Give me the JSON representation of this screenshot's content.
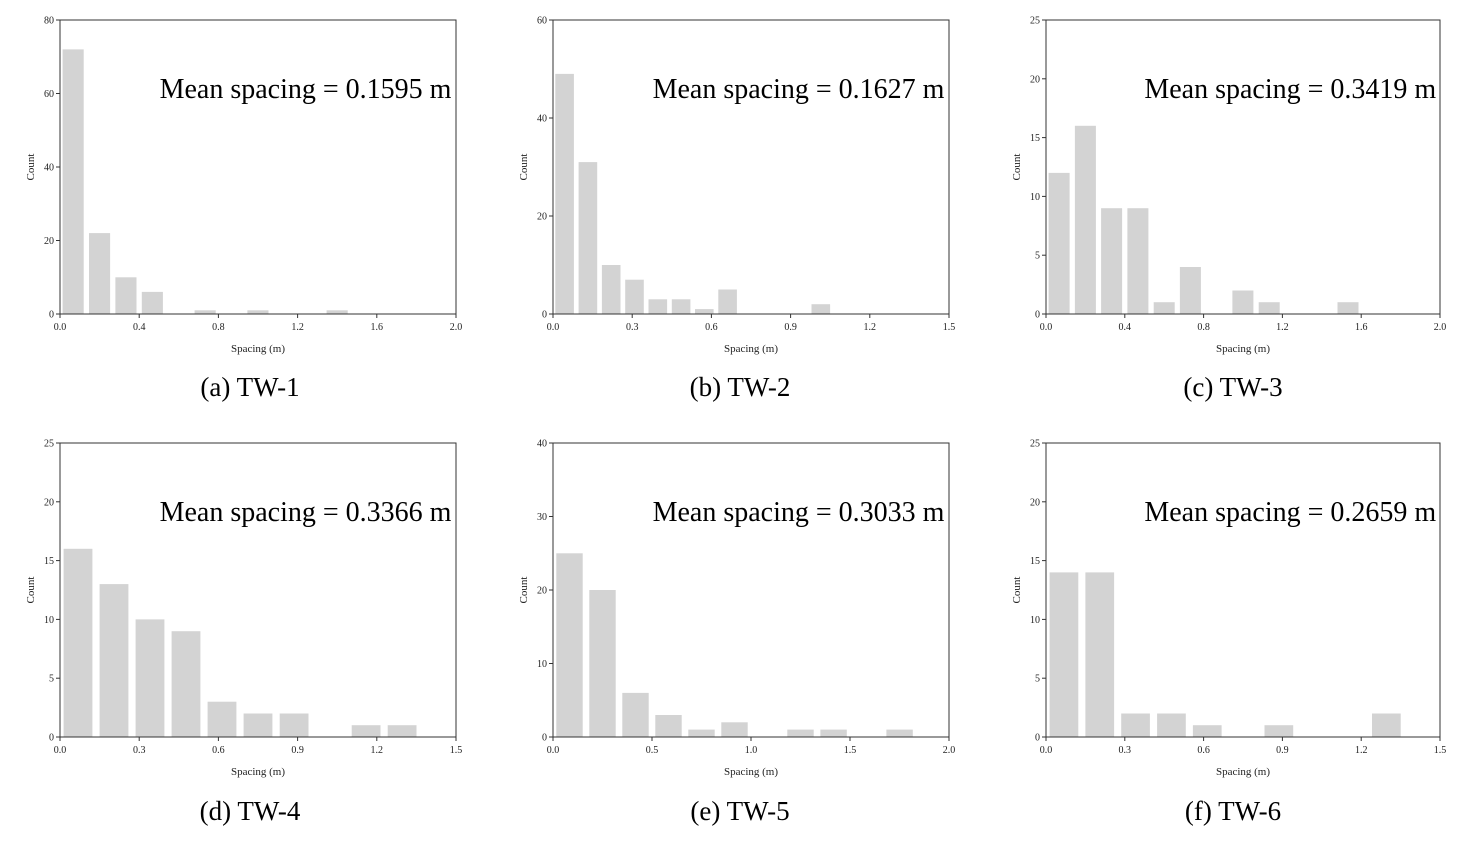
{
  "bar_color": "#d3d3d3",
  "axis_color": "#333333",
  "chart_data": [
    {
      "type": "bar",
      "caption": "(a) TW-1",
      "annotation": "Mean spacing = 0.1595 m",
      "xlabel": "Spacing (m)",
      "ylabel": "Count",
      "xlim": [
        0,
        2.0
      ],
      "ylim": [
        0,
        80
      ],
      "xticks": [
        "0.0",
        "0.4",
        "0.8",
        "1.2",
        "1.6",
        "2.0"
      ],
      "xtick_values": [
        0,
        0.4,
        0.8,
        1.2,
        1.6,
        2.0
      ],
      "yticks": [
        "0",
        "20",
        "40",
        "60",
        "80"
      ],
      "ytick_values": [
        0,
        20,
        40,
        60,
        80
      ],
      "bin_width": 0.1333,
      "values": [
        72,
        22,
        10,
        6,
        0,
        1,
        0,
        1,
        0,
        0,
        1,
        0,
        0,
        0,
        0
      ]
    },
    {
      "type": "bar",
      "caption": "(b) TW-2",
      "annotation": "Mean spacing = 0.1627 m",
      "xlabel": "Spacing (m)",
      "ylabel": "Count",
      "xlim": [
        0,
        1.5
      ],
      "ylim": [
        0,
        60
      ],
      "xticks": [
        "0.0",
        "0.3",
        "0.6",
        "0.9",
        "1.2",
        "1.5"
      ],
      "xtick_values": [
        0,
        0.3,
        0.6,
        0.9,
        1.2,
        1.5
      ],
      "yticks": [
        "0",
        "20",
        "40",
        "60"
      ],
      "ytick_values": [
        0,
        20,
        40,
        60
      ],
      "bin_width": 0.0882,
      "values": [
        49,
        31,
        10,
        7,
        3,
        3,
        1,
        5,
        0,
        0,
        0,
        2,
        0,
        0,
        0,
        0,
        0
      ]
    },
    {
      "type": "bar",
      "caption": "(c) TW-3",
      "annotation": "Mean spacing = 0.3419 m",
      "xlabel": "Spacing (m)",
      "ylabel": "Count",
      "xlim": [
        0,
        2.0
      ],
      "ylim": [
        0,
        25
      ],
      "xticks": [
        "0.0",
        "0.4",
        "0.8",
        "1.2",
        "1.6",
        "2.0"
      ],
      "xtick_values": [
        0,
        0.4,
        0.8,
        1.2,
        1.6,
        2.0
      ],
      "yticks": [
        "0",
        "5",
        "10",
        "15",
        "20",
        "25"
      ],
      "ytick_values": [
        0,
        5,
        10,
        15,
        20,
        25
      ],
      "bin_width": 0.1333,
      "values": [
        12,
        16,
        9,
        9,
        1,
        4,
        0,
        2,
        1,
        0,
        0,
        1,
        0,
        0,
        0
      ]
    },
    {
      "type": "bar",
      "caption": "(d) TW-4",
      "annotation": "Mean spacing = 0.3366 m",
      "xlabel": "Spacing (m)",
      "ylabel": "Count",
      "xlim": [
        0,
        1.5
      ],
      "ylim": [
        0,
        25
      ],
      "xticks": [
        "0.0",
        "0.3",
        "0.6",
        "0.9",
        "1.2",
        "1.5"
      ],
      "xtick_values": [
        0,
        0.3,
        0.6,
        0.9,
        1.2,
        1.5
      ],
      "yticks": [
        "0",
        "5",
        "10",
        "15",
        "20",
        "25"
      ],
      "ytick_values": [
        0,
        5,
        10,
        15,
        20,
        25
      ],
      "bin_width": 0.1364,
      "values": [
        16,
        13,
        10,
        9,
        3,
        2,
        2,
        0,
        1,
        1,
        0
      ]
    },
    {
      "type": "bar",
      "caption": "(e) TW-5",
      "annotation": "Mean spacing = 0.3033 m",
      "xlabel": "Spacing (m)",
      "ylabel": "Count",
      "xlim": [
        0,
        2.0
      ],
      "ylim": [
        0,
        40
      ],
      "xticks": [
        "0.0",
        "0.5",
        "1.0",
        "1.5",
        "2.0"
      ],
      "xtick_values": [
        0,
        0.5,
        1.0,
        1.5,
        2.0
      ],
      "yticks": [
        "0",
        "10",
        "20",
        "30",
        "40"
      ],
      "ytick_values": [
        0,
        10,
        20,
        30,
        40
      ],
      "bin_width": 0.1667,
      "values": [
        25,
        20,
        6,
        3,
        1,
        2,
        0,
        1,
        1,
        0,
        1,
        0
      ]
    },
    {
      "type": "bar",
      "caption": "(f) TW-6",
      "annotation": "Mean spacing = 0.2659 m",
      "xlabel": "Spacing (m)",
      "ylabel": "Count",
      "xlim": [
        0,
        1.5
      ],
      "ylim": [
        0,
        25
      ],
      "xticks": [
        "0.0",
        "0.3",
        "0.6",
        "0.9",
        "1.2",
        "1.5"
      ],
      "xtick_values": [
        0,
        0.3,
        0.6,
        0.9,
        1.2,
        1.5
      ],
      "yticks": [
        "0",
        "5",
        "10",
        "15",
        "20",
        "25"
      ],
      "ytick_values": [
        0,
        5,
        10,
        15,
        20,
        25
      ],
      "bin_width": 0.1364,
      "values": [
        14,
        14,
        2,
        2,
        1,
        0,
        1,
        0,
        0,
        2,
        0
      ]
    }
  ]
}
